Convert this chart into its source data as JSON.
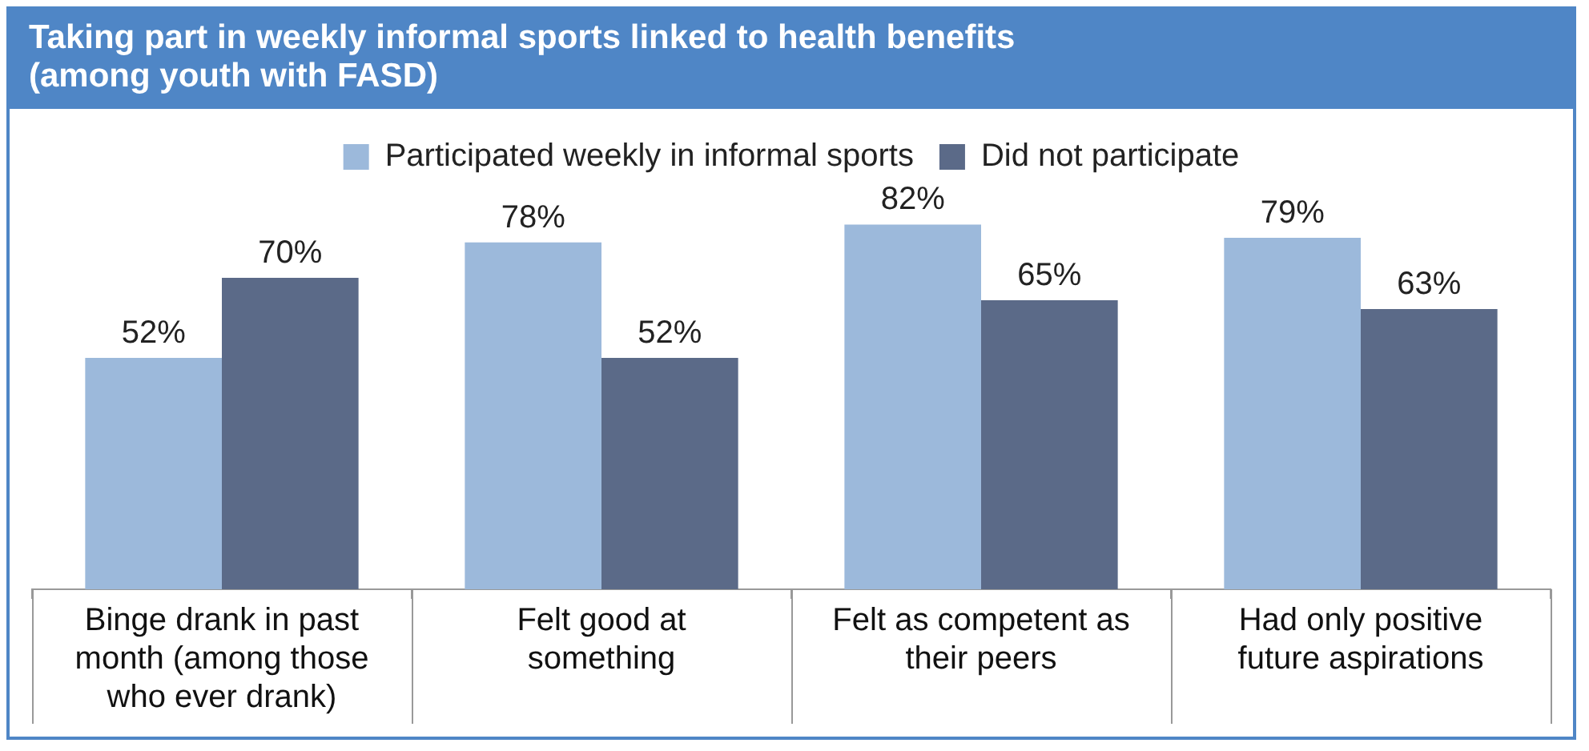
{
  "chart_data": {
    "type": "bar",
    "title": "Taking part in weekly informal sports linked to health benefits",
    "subtitle": "(among youth with FASD)",
    "categories": [
      "Binge drank in past month (among those who ever drank)",
      "Felt good at something",
      "Felt as competent as their peers",
      "Had only positive future aspirations"
    ],
    "series": [
      {
        "name": "Participated weekly in informal sports",
        "color": "#9cb9db",
        "values": [
          52,
          78,
          82,
          79
        ],
        "value_labels": [
          "52%",
          "78%",
          "82%",
          "79%"
        ]
      },
      {
        "name": "Did not participate",
        "color": "#5b6a88",
        "values": [
          70,
          52,
          65,
          63
        ],
        "value_labels": [
          "70%",
          "52%",
          "65%",
          "63%"
        ]
      }
    ],
    "tick_labels": "x",
    "legend": "top"
  }
}
